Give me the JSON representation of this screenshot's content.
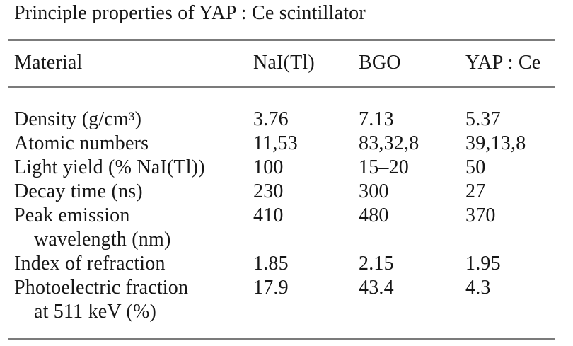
{
  "caption": "Principle properties of YAP : Ce scintillator",
  "colors": {
    "rule": "#7b7b7b",
    "text": "#161616",
    "background": "#ffffff"
  },
  "table": {
    "columns": [
      "Material",
      "NaI(Tl)",
      "BGO",
      "YAP : Ce"
    ],
    "rows": [
      {
        "property": "Density (g/cm³)",
        "property_line2": "",
        "nai": "3.76",
        "bgo": "7.13",
        "yap": "5.37"
      },
      {
        "property": "Atomic numbers",
        "property_line2": "",
        "nai": "11,53",
        "bgo": "83,32,8",
        "yap": "39,13,8"
      },
      {
        "property": "Light yield (% NaI(Tl))",
        "property_line2": "",
        "nai": "100",
        "bgo": "15–20",
        "yap": "50"
      },
      {
        "property": "Decay time (ns)",
        "property_line2": "",
        "nai": "230",
        "bgo": "300",
        "yap": "27"
      },
      {
        "property": "Peak emission",
        "property_line2": "wavelength (nm)",
        "nai": "410",
        "bgo": "480",
        "yap": "370"
      },
      {
        "property": "Index of refraction",
        "property_line2": "",
        "nai": "1.85",
        "bgo": "2.15",
        "yap": "1.95"
      },
      {
        "property": "Photoelectric fraction",
        "property_line2": "at 511 keV (%)",
        "nai": "17.9",
        "bgo": "43.4",
        "yap": "4.3"
      }
    ]
  }
}
